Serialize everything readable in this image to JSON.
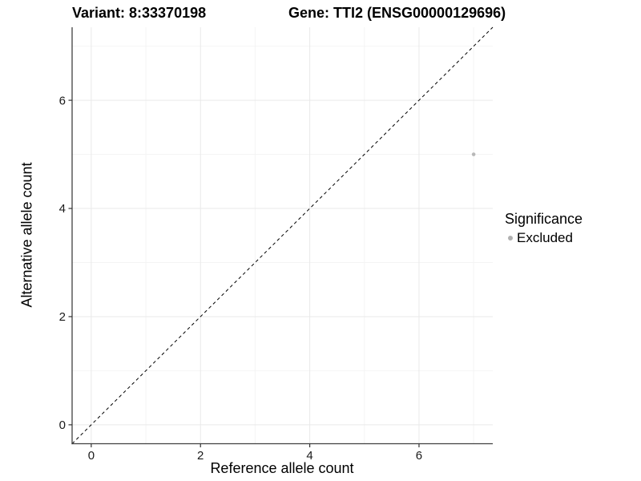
{
  "chart_data": {
    "type": "scatter",
    "titles": {
      "left": "Variant: 8:33370198",
      "right": "Gene: TTI2 (ENSG00000129696)"
    },
    "xlabel": "Reference allele count",
    "ylabel": "Alternative allele count",
    "xlim": [
      -0.35,
      7.35
    ],
    "ylim": [
      -0.35,
      7.35
    ],
    "x_major_ticks": [
      0,
      2,
      4,
      6
    ],
    "y_major_ticks": [
      0,
      2,
      4,
      6
    ],
    "x_minor_ticks": [
      1,
      3,
      5,
      7
    ],
    "y_minor_ticks": [
      1,
      3,
      5,
      7
    ],
    "grid": "on",
    "identity_line": {
      "style": "dashed",
      "equation": "y = x",
      "color": "#000000"
    },
    "series": [
      {
        "name": "Excluded",
        "color": "#b8b8b8",
        "points": [
          {
            "x": 7,
            "y": 5
          }
        ]
      }
    ],
    "legend": {
      "title": "Significance",
      "position": "right",
      "entries": [
        {
          "label": "Excluded",
          "color": "#b0b0b0"
        }
      ]
    }
  },
  "colors": {
    "background": "#ffffff",
    "grid_major": "#e9e9e9",
    "grid_minor": "#f4f4f4",
    "axis_line": "#404040",
    "tick_mark": "#333333",
    "tick_label": "#1a1a1a",
    "identity_line": "#000000",
    "point": "#b8b8b8"
  }
}
